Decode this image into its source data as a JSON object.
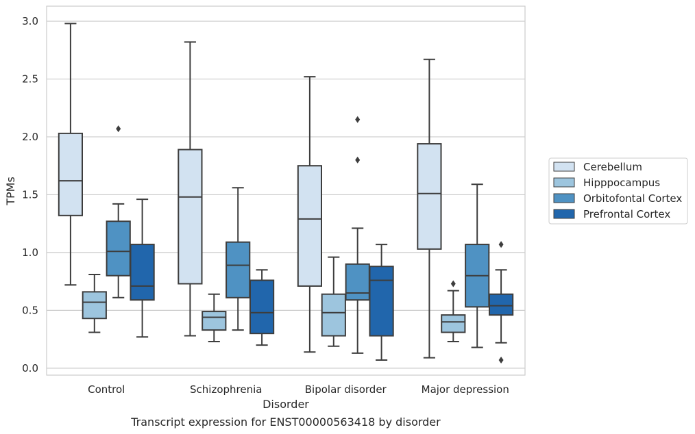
{
  "chart_data": {
    "type": "box",
    "xlabel": "Disorder",
    "ylabel": "TPMs",
    "caption": "Transcript expression for ENST00000563418 by disorder",
    "ylim": [
      -0.06,
      3.13
    ],
    "yticks": [
      "0.0",
      "0.5",
      "1.0",
      "1.5",
      "2.0",
      "2.5",
      "3.0"
    ],
    "grid": "horizontal",
    "legend_position": "right",
    "categories": [
      "Control",
      "Schizophrenia",
      "Bipolar disorder",
      "Major depression"
    ],
    "series": [
      {
        "name": "Cerebellum",
        "color": "#d2e2f1",
        "boxes": [
          {
            "whislo": 0.72,
            "q1": 1.32,
            "med": 1.62,
            "q3": 2.03,
            "whishi": 2.98,
            "fliers": []
          },
          {
            "whislo": 0.28,
            "q1": 0.73,
            "med": 1.48,
            "q3": 1.89,
            "whishi": 2.82,
            "fliers": []
          },
          {
            "whislo": 0.14,
            "q1": 0.71,
            "med": 1.29,
            "q3": 1.75,
            "whishi": 2.52,
            "fliers": []
          },
          {
            "whislo": 0.09,
            "q1": 1.03,
            "med": 1.51,
            "q3": 1.94,
            "whishi": 2.67,
            "fliers": []
          }
        ]
      },
      {
        "name": "Hipppocampus",
        "color": "#9dc5de",
        "boxes": [
          {
            "whislo": 0.31,
            "q1": 0.43,
            "med": 0.57,
            "q3": 0.66,
            "whishi": 0.81,
            "fliers": []
          },
          {
            "whislo": 0.23,
            "q1": 0.33,
            "med": 0.44,
            "q3": 0.49,
            "whishi": 0.64,
            "fliers": []
          },
          {
            "whislo": 0.19,
            "q1": 0.28,
            "med": 0.48,
            "q3": 0.64,
            "whishi": 0.96,
            "fliers": []
          },
          {
            "whislo": 0.23,
            "q1": 0.31,
            "med": 0.4,
            "q3": 0.46,
            "whishi": 0.67,
            "fliers": [
              0.73
            ]
          }
        ]
      },
      {
        "name": "Orbitofontal Cortex",
        "color": "#4f92c3",
        "boxes": [
          {
            "whislo": 0.61,
            "q1": 0.8,
            "med": 1.01,
            "q3": 1.27,
            "whishi": 1.42,
            "fliers": [
              2.07
            ]
          },
          {
            "whislo": 0.33,
            "q1": 0.61,
            "med": 0.89,
            "q3": 1.09,
            "whishi": 1.56,
            "fliers": []
          },
          {
            "whislo": 0.13,
            "q1": 0.59,
            "med": 0.65,
            "q3": 0.9,
            "whishi": 1.21,
            "fliers": [
              1.8,
              2.15
            ]
          },
          {
            "whislo": 0.18,
            "q1": 0.53,
            "med": 0.8,
            "q3": 1.07,
            "whishi": 1.59,
            "fliers": []
          }
        ]
      },
      {
        "name": "Prefrontal Cortex",
        "color": "#2166ac",
        "boxes": [
          {
            "whislo": 0.27,
            "q1": 0.59,
            "med": 0.71,
            "q3": 1.07,
            "whishi": 1.46,
            "fliers": []
          },
          {
            "whislo": 0.2,
            "q1": 0.3,
            "med": 0.48,
            "q3": 0.76,
            "whishi": 0.85,
            "fliers": []
          },
          {
            "whislo": 0.07,
            "q1": 0.28,
            "med": 0.76,
            "q3": 0.88,
            "whishi": 1.07,
            "fliers": []
          },
          {
            "whislo": 0.22,
            "q1": 0.46,
            "med": 0.54,
            "q3": 0.64,
            "whishi": 0.85,
            "fliers": [
              0.07,
              1.07
            ]
          }
        ]
      }
    ]
  }
}
